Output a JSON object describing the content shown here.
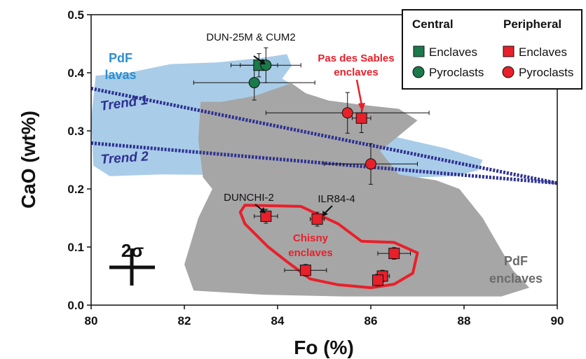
{
  "chart_data": {
    "type": "scatter",
    "xlabel": "Fo (%)",
    "ylabel": "CaO (wt%)",
    "xlim": [
      80,
      90
    ],
    "ylim": [
      0.0,
      0.5
    ],
    "x_ticks": [
      "80",
      "82",
      "84",
      "86",
      "88",
      "90"
    ],
    "y_ticks": [
      "0.0",
      "0.1",
      "0.2",
      "0.3",
      "0.4",
      "0.5"
    ],
    "grid": false,
    "legend_position": "top-right",
    "legend": {
      "central_heading": "Central",
      "peripheral_heading": "Peripheral",
      "enclaves_label": "Enclaves",
      "pyroclasts_label": "Pyroclasts"
    },
    "colors": {
      "central": "#1a7a4a",
      "peripheral": "#e8202a",
      "lavas_field": "#a9cde8",
      "enclaves_field": "#a6a6a6",
      "trend": "#2e3192"
    },
    "series": [
      {
        "name": "Central Enclaves",
        "marker": "square",
        "points": [
          {
            "x": 83.6,
            "y": 0.413,
            "xerr": 0.4,
            "yerr": 0.02
          }
        ]
      },
      {
        "name": "Central Pyroclasts",
        "marker": "circle",
        "points": [
          {
            "x": 83.75,
            "y": 0.413,
            "xerr": 0.75,
            "yerr": 0.03
          },
          {
            "x": 83.5,
            "y": 0.383,
            "xerr": 1.3,
            "yerr": 0.03
          }
        ]
      },
      {
        "name": "Peripheral Enclaves",
        "marker": "square",
        "points": [
          {
            "x": 85.8,
            "y": 0.322,
            "xerr": 0.2,
            "yerr": 0.025
          },
          {
            "x": 83.75,
            "y": 0.153,
            "xerr": 0.25,
            "yerr": 0.012
          },
          {
            "x": 84.85,
            "y": 0.148,
            "xerr": 0.15,
            "yerr": 0.012
          },
          {
            "x": 86.5,
            "y": 0.089,
            "xerr": 0.35,
            "yerr": 0.01
          },
          {
            "x": 84.6,
            "y": 0.06,
            "xerr": 0.45,
            "yerr": 0.01
          },
          {
            "x": 86.25,
            "y": 0.05,
            "xerr": 0.15,
            "yerr": 0.01
          },
          {
            "x": 86.15,
            "y": 0.043,
            "xerr": 0.1,
            "yerr": 0.01
          }
        ]
      },
      {
        "name": "Peripheral Pyroclasts",
        "marker": "circle",
        "points": [
          {
            "x": 85.5,
            "y": 0.331,
            "xerr": 1.75,
            "yerr": 0.035
          },
          {
            "x": 86.0,
            "y": 0.243,
            "xerr": 1.0,
            "yerr": 0.035
          }
        ]
      }
    ],
    "fields": [
      {
        "label": "PdF lavas",
        "color": "#a9cde8",
        "polygon": [
          [
            80.1,
            0.395
          ],
          [
            80.8,
            0.4
          ],
          [
            81.7,
            0.415
          ],
          [
            82.7,
            0.418
          ],
          [
            83.6,
            0.425
          ],
          [
            84.2,
            0.432
          ],
          [
            84.3,
            0.412
          ],
          [
            84.1,
            0.39
          ],
          [
            84.9,
            0.35
          ],
          [
            85.7,
            0.305
          ],
          [
            86.5,
            0.29
          ],
          [
            87.6,
            0.27
          ],
          [
            88.4,
            0.25
          ],
          [
            88.3,
            0.232
          ],
          [
            87.8,
            0.222
          ],
          [
            87.0,
            0.22
          ],
          [
            86.0,
            0.222
          ],
          [
            84.5,
            0.222
          ],
          [
            83.2,
            0.224
          ],
          [
            81.5,
            0.225
          ],
          [
            80.4,
            0.222
          ],
          [
            80.05,
            0.24
          ],
          [
            80.0,
            0.32
          ]
        ]
      },
      {
        "label": "PdF enclaves",
        "color": "#a6a6a6",
        "polygon": [
          [
            82.35,
            0.35
          ],
          [
            82.8,
            0.35
          ],
          [
            83.5,
            0.36
          ],
          [
            84.3,
            0.382
          ],
          [
            84.6,
            0.365
          ],
          [
            85.1,
            0.352
          ],
          [
            85.8,
            0.345
          ],
          [
            86.6,
            0.338
          ],
          [
            87.0,
            0.318
          ],
          [
            86.2,
            0.265
          ],
          [
            86.6,
            0.225
          ],
          [
            87.4,
            0.215
          ],
          [
            87.9,
            0.2
          ],
          [
            88.4,
            0.15
          ],
          [
            89.05,
            0.06
          ],
          [
            89.4,
            0.03
          ],
          [
            88.8,
            0.015
          ],
          [
            87.0,
            0.015
          ],
          [
            85.4,
            0.015
          ],
          [
            83.7,
            0.018
          ],
          [
            82.2,
            0.025
          ],
          [
            82.0,
            0.07
          ],
          [
            82.3,
            0.15
          ],
          [
            82.6,
            0.2
          ],
          [
            82.4,
            0.22
          ],
          [
            82.3,
            0.285
          ]
        ]
      }
    ],
    "outline": {
      "label": "Chisny enclaves",
      "color": "#e8202a",
      "polygon": [
        [
          83.3,
          0.172
        ],
        [
          84.5,
          0.17
        ],
        [
          85.3,
          0.14
        ],
        [
          85.8,
          0.11
        ],
        [
          86.5,
          0.108
        ],
        [
          87.0,
          0.09
        ],
        [
          86.9,
          0.055
        ],
        [
          86.5,
          0.036
        ],
        [
          86.0,
          0.03
        ],
        [
          85.3,
          0.035
        ],
        [
          84.7,
          0.045
        ],
        [
          84.2,
          0.075
        ],
        [
          83.8,
          0.1
        ],
        [
          83.3,
          0.14
        ],
        [
          83.2,
          0.16
        ]
      ]
    },
    "trends": [
      {
        "label": "Trend 1",
        "from": [
          80.0,
          0.373
        ],
        "to": [
          90.0,
          0.21
        ]
      },
      {
        "label": "Trend 2",
        "from": [
          80.0,
          0.279
        ],
        "to": [
          90.0,
          0.21
        ]
      }
    ],
    "annotations": {
      "dun25m": "DUN-25M & CUM2",
      "pas_des_sables_line1": "Pas des Sables",
      "pas_des_sables_line2": "enclaves",
      "dunchi": "DUNCHI-2",
      "ilr": "ILR84-4",
      "chisny_line1": "Chisny",
      "chisny_line2": "enclaves",
      "pdf_lavas_line1": "PdF",
      "pdf_lavas_line2": "lavas",
      "pdf_enclaves_line1": "PdF",
      "pdf_enclaves_line2": "enclaves",
      "trend1": "Trend 1",
      "trend2": "Trend 2",
      "two_sigma": "2σ"
    }
  }
}
